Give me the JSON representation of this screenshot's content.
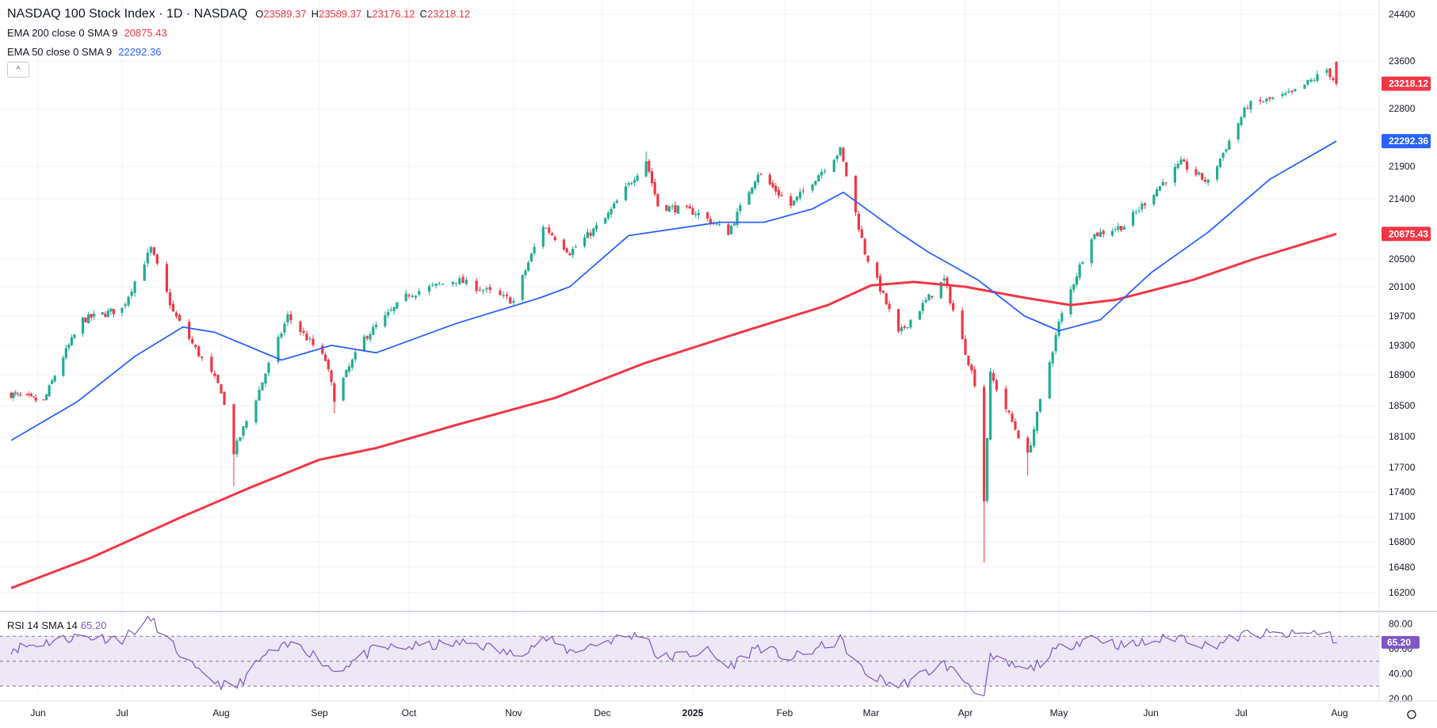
{
  "header": {
    "symbol": "NASDAQ 100 Stock Index · 1D · NASDAQ",
    "ohlc": [
      {
        "key": "O",
        "value": "23589.37"
      },
      {
        "key": "H",
        "value": "23589.37"
      },
      {
        "key": "L",
        "value": "23176.12"
      },
      {
        "key": "C",
        "value": "23218.12"
      }
    ],
    "indicators": [
      {
        "name": "EMA 200 close 0 SMA 9",
        "value": "20875.43",
        "color": "#f23645"
      },
      {
        "name": "EMA 50 close 0 SMA 9",
        "value": "22292.36",
        "color": "#2962ff"
      }
    ],
    "collapse_icon": "chevron-up-icon",
    "rsi_label": "RSI 14 SMA 14",
    "rsi_value": "65.20"
  },
  "colors": {
    "up": "#22ab94",
    "down": "#f23645",
    "ema200": "#f23645",
    "ema50": "#2962ff",
    "rsi": "#7e57c2",
    "rsi_band": "#ede7f6",
    "grid": "#f0f3fa"
  },
  "chart_data": [
    {
      "type": "candlestick",
      "title": "NASDAQ 100 Stock Index · 1D · NASDAQ",
      "x_tick_labels": [
        "Jun",
        "Jul",
        "Aug",
        "Sep",
        "Oct",
        "Nov",
        "Dec",
        "2025",
        "Feb",
        "Mar",
        "Apr",
        "May",
        "Jun",
        "Jul",
        "Aug"
      ],
      "y_tick_labels": [
        16200,
        16480,
        16800,
        17100,
        17400,
        17700,
        18100,
        18500,
        18900,
        19300,
        19700,
        20100,
        20500,
        21400,
        21900,
        22800,
        23600,
        24400
      ],
      "ylim": [
        16050,
        24450
      ],
      "grid": true,
      "price_labels": [
        {
          "name": "last",
          "value": "23218.12",
          "color": "#f23645"
        },
        {
          "name": "EMA 50",
          "value": "22292.36",
          "color": "#2962ff"
        },
        {
          "name": "EMA 200",
          "value": "20875.43",
          "color": "#f23645"
        }
      ],
      "close_path": [
        [
          "2024-05-20",
          18650
        ],
        [
          "2024-06-03",
          18550
        ],
        [
          "2024-06-10",
          19150
        ],
        [
          "2024-06-17",
          19650
        ],
        [
          "2024-07-01",
          19800
        ],
        [
          "2024-07-10",
          20650
        ],
        [
          "2024-07-17",
          19750
        ],
        [
          "2024-07-24",
          19250
        ],
        [
          "2024-08-01",
          18700
        ],
        [
          "2024-08-05",
          17900
        ],
        [
          "2024-08-13",
          18700
        ],
        [
          "2024-08-22",
          19700
        ],
        [
          "2024-09-03",
          19100
        ],
        [
          "2024-09-06",
          18600
        ],
        [
          "2024-09-16",
          19400
        ],
        [
          "2024-10-01",
          20000
        ],
        [
          "2024-10-15",
          20200
        ],
        [
          "2024-11-01",
          19900
        ],
        [
          "2024-11-11",
          21000
        ],
        [
          "2024-11-20",
          20600
        ],
        [
          "2024-12-02",
          21100
        ],
        [
          "2024-12-16",
          22000
        ],
        [
          "2024-12-20",
          21300
        ],
        [
          "2025-01-02",
          21200
        ],
        [
          "2025-01-13",
          20900
        ],
        [
          "2025-01-23",
          21800
        ],
        [
          "2025-02-03",
          21300
        ],
        [
          "2025-02-19",
          22150
        ],
        [
          "2025-02-27",
          20600
        ],
        [
          "2025-03-10",
          19450
        ],
        [
          "2025-03-25",
          20200
        ],
        [
          "2025-04-04",
          18800
        ],
        [
          "2025-04-07",
          17300
        ],
        [
          "2025-04-09",
          18900
        ],
        [
          "2025-04-21",
          17850
        ],
        [
          "2025-05-01",
          19600
        ],
        [
          "2025-05-12",
          20850
        ],
        [
          "2025-05-23",
          21000
        ],
        [
          "2025-06-11",
          21950
        ],
        [
          "2025-06-20",
          21650
        ],
        [
          "2025-07-03",
          22850
        ],
        [
          "2025-07-17",
          23050
        ],
        [
          "2025-07-28",
          23450
        ],
        [
          "2025-07-31",
          23218
        ]
      ],
      "low_spikes": [
        [
          "2024-08-05",
          17470
        ],
        [
          "2024-09-06",
          18400
        ],
        [
          "2025-04-07",
          16540
        ],
        [
          "2025-04-21",
          17600
        ]
      ],
      "high_spikes": [
        [
          "2024-07-10",
          20700
        ],
        [
          "2024-12-16",
          22130
        ],
        [
          "2025-02-19",
          22210
        ],
        [
          "2025-07-31",
          23589
        ]
      ],
      "last_candle": {
        "date": "2025-07-31",
        "open": 23589.37,
        "high": 23589.37,
        "low": 23176.12,
        "close": 23218.12
      },
      "series": [
        {
          "name": "EMA 200 close 0 SMA 9",
          "points": [
            [
              "2024-05-20",
              16250
            ],
            [
              "2024-06-20",
              16600
            ],
            [
              "2024-07-20",
              17100
            ],
            [
              "2024-08-10",
              17450
            ],
            [
              "2024-09-01",
              17800
            ],
            [
              "2024-09-20",
              17950
            ],
            [
              "2024-10-15",
              18250
            ],
            [
              "2024-11-15",
              18600
            ],
            [
              "2024-12-15",
              19050
            ],
            [
              "2025-01-15",
              19450
            ],
            [
              "2025-02-15",
              19850
            ],
            [
              "2025-03-01",
              20120
            ],
            [
              "2025-03-15",
              20170
            ],
            [
              "2025-04-01",
              20100
            ],
            [
              "2025-04-20",
              19950
            ],
            [
              "2025-05-05",
              19850
            ],
            [
              "2025-05-20",
              19920
            ],
            [
              "2025-06-15",
              20200
            ],
            [
              "2025-07-05",
              20500
            ],
            [
              "2025-07-31",
              20875
            ]
          ]
        },
        {
          "name": "EMA 50 close 0 SMA 9",
          "points": [
            [
              "2024-05-20",
              18050
            ],
            [
              "2024-06-15",
              18550
            ],
            [
              "2024-07-05",
              19150
            ],
            [
              "2024-07-20",
              19550
            ],
            [
              "2024-07-30",
              19480
            ],
            [
              "2024-08-20",
              19100
            ],
            [
              "2024-09-05",
              19300
            ],
            [
              "2024-09-20",
              19200
            ],
            [
              "2024-10-15",
              19600
            ],
            [
              "2024-11-10",
              19950
            ],
            [
              "2024-11-20",
              20100
            ],
            [
              "2024-12-10",
              20850
            ],
            [
              "2025-01-10",
              21050
            ],
            [
              "2025-01-25",
              21050
            ],
            [
              "2025-02-10",
              21250
            ],
            [
              "2025-02-20",
              21500
            ],
            [
              "2025-03-10",
              20900
            ],
            [
              "2025-03-20",
              20600
            ],
            [
              "2025-04-05",
              20200
            ],
            [
              "2025-04-20",
              19700
            ],
            [
              "2025-05-01",
              19500
            ],
            [
              "2025-05-15",
              19650
            ],
            [
              "2025-06-01",
              20300
            ],
            [
              "2025-06-20",
              20900
            ],
            [
              "2025-07-10",
              21700
            ],
            [
              "2025-07-31",
              22292
            ]
          ]
        }
      ]
    },
    {
      "type": "line",
      "title": "RSI 14 SMA 14",
      "y_tick_labels": [
        20,
        40,
        60,
        80
      ],
      "ylim": [
        18,
        88
      ],
      "band": [
        30,
        70
      ],
      "midline": 50,
      "series": [
        {
          "name": "RSI 14",
          "points": [
            [
              "2024-05-20",
              60
            ],
            [
              "2024-06-01",
              64
            ],
            [
              "2024-06-15",
              70
            ],
            [
              "2024-07-01",
              68
            ],
            [
              "2024-07-10",
              84
            ],
            [
              "2024-07-17",
              62
            ],
            [
              "2024-07-25",
              40
            ],
            [
              "2024-08-05",
              27
            ],
            [
              "2024-08-15",
              55
            ],
            [
              "2024-08-25",
              65
            ],
            [
              "2024-09-06",
              42
            ],
            [
              "2024-09-20",
              60
            ],
            [
              "2024-10-05",
              62
            ],
            [
              "2024-10-20",
              65
            ],
            [
              "2024-11-01",
              55
            ],
            [
              "2024-11-12",
              68
            ],
            [
              "2024-11-20",
              58
            ],
            [
              "2024-12-05",
              68
            ],
            [
              "2024-12-16",
              72
            ],
            [
              "2024-12-20",
              52
            ],
            [
              "2025-01-06",
              58
            ],
            [
              "2025-01-13",
              45
            ],
            [
              "2025-01-23",
              62
            ],
            [
              "2025-02-03",
              52
            ],
            [
              "2025-02-19",
              67
            ],
            [
              "2025-02-27",
              40
            ],
            [
              "2025-03-10",
              30
            ],
            [
              "2025-03-25",
              48
            ],
            [
              "2025-04-04",
              28
            ],
            [
              "2025-04-07",
              22
            ],
            [
              "2025-04-09",
              52
            ],
            [
              "2025-04-21",
              42
            ],
            [
              "2025-05-01",
              60
            ],
            [
              "2025-05-12",
              70
            ],
            [
              "2025-05-23",
              62
            ],
            [
              "2025-06-11",
              70
            ],
            [
              "2025-06-20",
              62
            ],
            [
              "2025-07-03",
              72
            ],
            [
              "2025-07-17",
              71
            ],
            [
              "2025-07-28",
              74
            ],
            [
              "2025-07-31",
              65.2
            ]
          ]
        }
      ]
    }
  ]
}
